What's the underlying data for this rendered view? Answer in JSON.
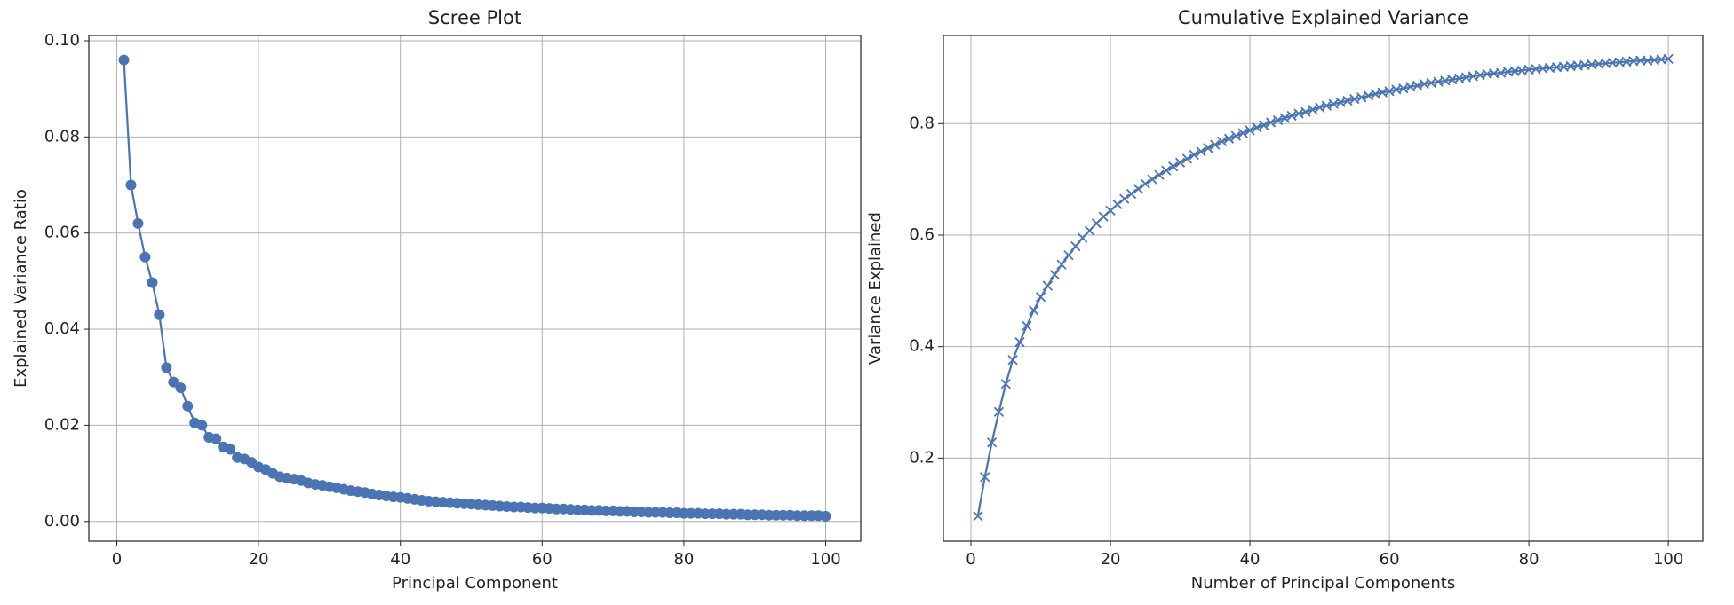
{
  "chart_data": [
    {
      "type": "line",
      "title": "Scree Plot",
      "x_label": "Principal Component",
      "y_label": "Explained Variance Ratio",
      "marker": "circle",
      "grid": true,
      "x": [
        1,
        2,
        3,
        4,
        5,
        6,
        7,
        8,
        9,
        10,
        11,
        12,
        13,
        14,
        15,
        16,
        17,
        18,
        19,
        20,
        21,
        22,
        23,
        24,
        25,
        26,
        27,
        28,
        29,
        30,
        31,
        32,
        33,
        34,
        35,
        36,
        37,
        38,
        39,
        40,
        41,
        42,
        43,
        44,
        45,
        46,
        47,
        48,
        49,
        50,
        51,
        52,
        53,
        54,
        55,
        56,
        57,
        58,
        59,
        60,
        61,
        62,
        63,
        64,
        65,
        66,
        67,
        68,
        69,
        70,
        71,
        72,
        73,
        74,
        75,
        76,
        77,
        78,
        79,
        80,
        81,
        82,
        83,
        84,
        85,
        86,
        87,
        88,
        89,
        90,
        91,
        92,
        93,
        94,
        95,
        96,
        97,
        98,
        99,
        100
      ],
      "series": [
        {
          "color": "#4a74b4",
          "values": [
            0.096,
            0.07,
            0.062,
            0.055,
            0.0497,
            0.043,
            0.032,
            0.029,
            0.0278,
            0.024,
            0.0205,
            0.02,
            0.0175,
            0.0172,
            0.0155,
            0.015,
            0.0133,
            0.013,
            0.0123,
            0.0113,
            0.0108,
            0.01,
            0.0093,
            0.009,
            0.0088,
            0.0085,
            0.008,
            0.0077,
            0.0075,
            0.0072,
            0.007,
            0.0067,
            0.0064,
            0.0062,
            0.006,
            0.0057,
            0.0055,
            0.0053,
            0.0051,
            0.005,
            0.0048,
            0.0046,
            0.0044,
            0.0042,
            0.0041,
            0.004,
            0.0039,
            0.0038,
            0.0037,
            0.0036,
            0.0035,
            0.0034,
            0.0033,
            0.0032,
            0.0031,
            0.003,
            0.003,
            0.0029,
            0.0028,
            0.0028,
            0.0027,
            0.0026,
            0.0026,
            0.0025,
            0.0024,
            0.0024,
            0.0023,
            0.0023,
            0.0022,
            0.0022,
            0.0021,
            0.0021,
            0.002,
            0.002,
            0.0019,
            0.0019,
            0.0019,
            0.0018,
            0.0018,
            0.0017,
            0.0017,
            0.0017,
            0.0016,
            0.0016,
            0.0016,
            0.0015,
            0.0015,
            0.0015,
            0.0014,
            0.0014,
            0.0014,
            0.0013,
            0.0013,
            0.0013,
            0.0013,
            0.0012,
            0.0012,
            0.0012,
            0.0012,
            0.0011
          ]
        }
      ],
      "xlim": [
        -3.95,
        104.95
      ],
      "xticks": [
        0,
        20,
        40,
        60,
        80,
        100
      ],
      "ylim": [
        -0.0041,
        0.1011
      ],
      "yticks": [
        {
          "value": 0,
          "label": "0.00"
        },
        {
          "value": 0.02,
          "label": "0.02"
        },
        {
          "value": 0.04,
          "label": "0.04"
        },
        {
          "value": 0.06,
          "label": "0.06"
        },
        {
          "value": 0.08,
          "label": "0.08"
        },
        {
          "value": 0.1,
          "label": "0.10"
        }
      ]
    },
    {
      "type": "line",
      "title": "Cumulative Explained Variance",
      "x_label": "Number of Principal Components",
      "y_label": "Variance Explained",
      "marker": "x",
      "grid": true,
      "x": [
        1,
        2,
        3,
        4,
        5,
        6,
        7,
        8,
        9,
        10,
        11,
        12,
        13,
        14,
        15,
        16,
        17,
        18,
        19,
        20,
        21,
        22,
        23,
        24,
        25,
        26,
        27,
        28,
        29,
        30,
        31,
        32,
        33,
        34,
        35,
        36,
        37,
        38,
        39,
        40,
        41,
        42,
        43,
        44,
        45,
        46,
        47,
        48,
        49,
        50,
        51,
        52,
        53,
        54,
        55,
        56,
        57,
        58,
        59,
        60,
        61,
        62,
        63,
        64,
        65,
        66,
        67,
        68,
        69,
        70,
        71,
        72,
        73,
        74,
        75,
        76,
        77,
        78,
        79,
        80,
        81,
        82,
        83,
        84,
        85,
        86,
        87,
        88,
        89,
        90,
        91,
        92,
        93,
        94,
        95,
        96,
        97,
        98,
        99,
        100
      ],
      "series": [
        {
          "color": "#4a74b4",
          "values": [
            0.096,
            0.166,
            0.228,
            0.283,
            0.333,
            0.376,
            0.408,
            0.437,
            0.465,
            0.489,
            0.509,
            0.529,
            0.547,
            0.564,
            0.58,
            0.595,
            0.608,
            0.621,
            0.633,
            0.644,
            0.655,
            0.665,
            0.674,
            0.683,
            0.692,
            0.7,
            0.708,
            0.716,
            0.723,
            0.73,
            0.737,
            0.744,
            0.75,
            0.756,
            0.762,
            0.768,
            0.773,
            0.778,
            0.783,
            0.788,
            0.793,
            0.797,
            0.802,
            0.806,
            0.81,
            0.814,
            0.818,
            0.821,
            0.825,
            0.829,
            0.832,
            0.835,
            0.838,
            0.841,
            0.844,
            0.847,
            0.85,
            0.853,
            0.856,
            0.858,
            0.861,
            0.863,
            0.866,
            0.868,
            0.871,
            0.873,
            0.875,
            0.877,
            0.879,
            0.881,
            0.883,
            0.885,
            0.887,
            0.889,
            0.89,
            0.891,
            0.893,
            0.894,
            0.895,
            0.897,
            0.898,
            0.899,
            0.9,
            0.901,
            0.902,
            0.903,
            0.904,
            0.905,
            0.906,
            0.907,
            0.908,
            0.909,
            0.91,
            0.911,
            0.912,
            0.913,
            0.913,
            0.914,
            0.915,
            0.916
          ]
        }
      ],
      "xlim": [
        -3.95,
        104.95
      ],
      "xticks": [
        0,
        20,
        40,
        60,
        80,
        100
      ],
      "ylim": [
        0.051,
        0.958
      ],
      "yticks": [
        0.2,
        0.4,
        0.6,
        0.8
      ]
    }
  ]
}
